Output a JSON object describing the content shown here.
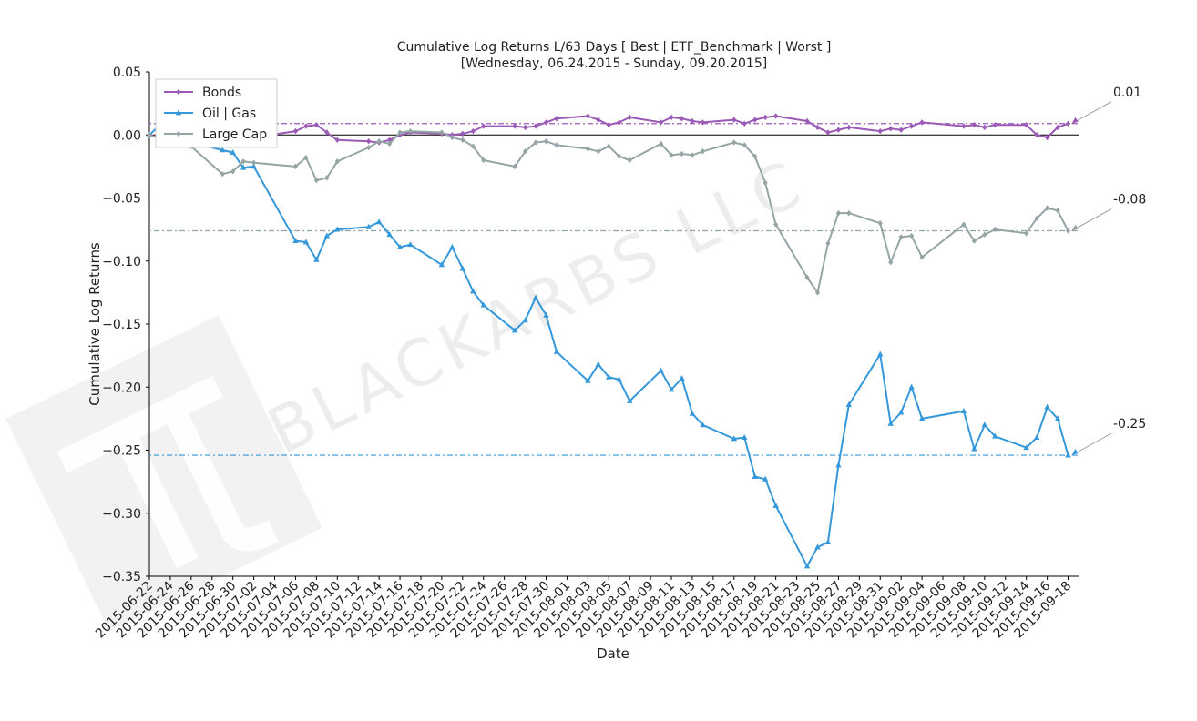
{
  "chart_data": {
    "type": "line",
    "title": "Cumulative Log Returns L/63 Days [ Best | ETF_Benchmark | Worst ]",
    "subtitle": "[Wednesday, 06.24.2015 - Sunday, 09.20.2015]",
    "xlabel": "Date",
    "ylabel": "Cumulative Log Returns",
    "ylim": [
      -0.35,
      0.05
    ],
    "xlim": [
      "2015-06-22",
      "2015-09-19"
    ],
    "y_ticks": [
      "0.05",
      "0.00",
      "−0.05",
      "−0.10",
      "−0.15",
      "−0.20",
      "−0.25",
      "−0.30",
      "−0.35"
    ],
    "y_tick_values": [
      0.05,
      0.0,
      -0.05,
      -0.1,
      -0.15,
      -0.2,
      -0.25,
      -0.3,
      -0.35
    ],
    "x_ticks": [
      "2015-06-22",
      "2015-06-24",
      "2015-06-26",
      "2015-06-28",
      "2015-06-30",
      "2015-07-02",
      "2015-07-04",
      "2015-07-06",
      "2015-07-08",
      "2015-07-10",
      "2015-07-12",
      "2015-07-14",
      "2015-07-16",
      "2015-07-18",
      "2015-07-20",
      "2015-07-22",
      "2015-07-24",
      "2015-07-26",
      "2015-07-28",
      "2015-07-30",
      "2015-08-01",
      "2015-08-03",
      "2015-08-05",
      "2015-08-07",
      "2015-08-09",
      "2015-08-11",
      "2015-08-13",
      "2015-08-15",
      "2015-08-17",
      "2015-08-19",
      "2015-08-21",
      "2015-08-23",
      "2015-08-25",
      "2015-08-27",
      "2015-08-29",
      "2015-08-31",
      "2015-09-02",
      "2015-09-04",
      "2015-09-06",
      "2015-09-08",
      "2015-09-10",
      "2015-09-12",
      "2015-09-14",
      "2015-09-16",
      "2015-09-18"
    ],
    "legend_position": "top-left",
    "grid": false,
    "watermark": "BLACKARBS LLC",
    "series": [
      {
        "name": "Bonds",
        "color": "#9b59b6",
        "marker": "diamond",
        "points": [
          [
            "2015-06-22",
            0.0
          ],
          [
            "2015-06-23",
            -0.002
          ],
          [
            "2015-06-24",
            -0.003
          ],
          [
            "2015-06-25",
            -0.004
          ],
          [
            "2015-06-26",
            -0.004
          ],
          [
            "2015-06-29",
            -0.001
          ],
          [
            "2015-06-30",
            -0.002
          ],
          [
            "2015-07-01",
            -0.003
          ],
          [
            "2015-07-02",
            -0.002
          ],
          [
            "2015-07-06",
            0.003
          ],
          [
            "2015-07-07",
            0.007
          ],
          [
            "2015-07-08",
            0.008
          ],
          [
            "2015-07-09",
            0.002
          ],
          [
            "2015-07-10",
            -0.004
          ],
          [
            "2015-07-13",
            -0.005
          ],
          [
            "2015-07-14",
            -0.006
          ],
          [
            "2015-07-15",
            -0.004
          ],
          [
            "2015-07-16",
            0.0
          ],
          [
            "2015-07-17",
            0.002
          ],
          [
            "2015-07-20",
            0.001
          ],
          [
            "2015-07-21",
            0.0
          ],
          [
            "2015-07-22",
            0.001
          ],
          [
            "2015-07-23",
            0.003
          ],
          [
            "2015-07-24",
            0.007
          ],
          [
            "2015-07-27",
            0.007
          ],
          [
            "2015-07-28",
            0.006
          ],
          [
            "2015-07-29",
            0.007
          ],
          [
            "2015-07-30",
            0.01
          ],
          [
            "2015-07-31",
            0.013
          ],
          [
            "2015-08-03",
            0.015
          ],
          [
            "2015-08-04",
            0.012
          ],
          [
            "2015-08-05",
            0.008
          ],
          [
            "2015-08-06",
            0.01
          ],
          [
            "2015-08-07",
            0.014
          ],
          [
            "2015-08-10",
            0.01
          ],
          [
            "2015-08-11",
            0.014
          ],
          [
            "2015-08-12",
            0.013
          ],
          [
            "2015-08-13",
            0.011
          ],
          [
            "2015-08-14",
            0.01
          ],
          [
            "2015-08-17",
            0.012
          ],
          [
            "2015-08-18",
            0.009
          ],
          [
            "2015-08-19",
            0.012
          ],
          [
            "2015-08-20",
            0.014
          ],
          [
            "2015-08-21",
            0.015
          ],
          [
            "2015-08-24",
            0.011
          ],
          [
            "2015-08-25",
            0.006
          ],
          [
            "2015-08-26",
            0.002
          ],
          [
            "2015-08-27",
            0.004
          ],
          [
            "2015-08-28",
            0.006
          ],
          [
            "2015-08-31",
            0.003
          ],
          [
            "2015-09-01",
            0.005
          ],
          [
            "2015-09-02",
            0.004
          ],
          [
            "2015-09-03",
            0.007
          ],
          [
            "2015-09-04",
            0.01
          ],
          [
            "2015-09-08",
            0.007
          ],
          [
            "2015-09-09",
            0.008
          ],
          [
            "2015-09-10",
            0.006
          ],
          [
            "2015-09-11",
            0.008
          ],
          [
            "2015-09-14",
            0.008
          ],
          [
            "2015-09-15",
            0.0
          ],
          [
            "2015-09-16",
            -0.002
          ],
          [
            "2015-09-17",
            0.006
          ],
          [
            "2015-09-18",
            0.009
          ]
        ]
      },
      {
        "name": "Oil | Gas",
        "color": "#3498db",
        "marker": "triangle",
        "points": [
          [
            "2015-06-22",
            0.0
          ],
          [
            "2015-06-23",
            0.008
          ],
          [
            "2015-06-24",
            -0.003
          ],
          [
            "2015-06-25",
            -0.007
          ],
          [
            "2015-06-26",
            -0.006
          ],
          [
            "2015-06-29",
            -0.012
          ],
          [
            "2015-06-30",
            -0.014
          ],
          [
            "2015-07-01",
            -0.026
          ],
          [
            "2015-07-02",
            -0.025
          ],
          [
            "2015-07-06",
            -0.084
          ],
          [
            "2015-07-07",
            -0.085
          ],
          [
            "2015-07-08",
            -0.099
          ],
          [
            "2015-07-09",
            -0.08
          ],
          [
            "2015-07-10",
            -0.075
          ],
          [
            "2015-07-13",
            -0.073
          ],
          [
            "2015-07-14",
            -0.069
          ],
          [
            "2015-07-15",
            -0.079
          ],
          [
            "2015-07-16",
            -0.089
          ],
          [
            "2015-07-17",
            -0.087
          ],
          [
            "2015-07-20",
            -0.103
          ],
          [
            "2015-07-21",
            -0.089
          ],
          [
            "2015-07-22",
            -0.106
          ],
          [
            "2015-07-23",
            -0.124
          ],
          [
            "2015-07-24",
            -0.135
          ],
          [
            "2015-07-27",
            -0.155
          ],
          [
            "2015-07-28",
            -0.147
          ],
          [
            "2015-07-29",
            -0.129
          ],
          [
            "2015-07-30",
            -0.143
          ],
          [
            "2015-07-31",
            -0.172
          ],
          [
            "2015-08-03",
            -0.195
          ],
          [
            "2015-08-04",
            -0.182
          ],
          [
            "2015-08-05",
            -0.192
          ],
          [
            "2015-08-06",
            -0.194
          ],
          [
            "2015-08-07",
            -0.211
          ],
          [
            "2015-08-10",
            -0.187
          ],
          [
            "2015-08-11",
            -0.202
          ],
          [
            "2015-08-12",
            -0.193
          ],
          [
            "2015-08-13",
            -0.221
          ],
          [
            "2015-08-14",
            -0.23
          ],
          [
            "2015-08-17",
            -0.241
          ],
          [
            "2015-08-18",
            -0.24
          ],
          [
            "2015-08-19",
            -0.271
          ],
          [
            "2015-08-20",
            -0.273
          ],
          [
            "2015-08-21",
            -0.294
          ],
          [
            "2015-08-24",
            -0.342
          ],
          [
            "2015-08-25",
            -0.327
          ],
          [
            "2015-08-26",
            -0.323
          ],
          [
            "2015-08-27",
            -0.262
          ],
          [
            "2015-08-28",
            -0.214
          ],
          [
            "2015-08-31",
            -0.174
          ],
          [
            "2015-09-01",
            -0.229
          ],
          [
            "2015-09-02",
            -0.22
          ],
          [
            "2015-09-03",
            -0.2
          ],
          [
            "2015-09-04",
            -0.225
          ],
          [
            "2015-09-08",
            -0.219
          ],
          [
            "2015-09-09",
            -0.249
          ],
          [
            "2015-09-10",
            -0.23
          ],
          [
            "2015-09-11",
            -0.239
          ],
          [
            "2015-09-14",
            -0.248
          ],
          [
            "2015-09-15",
            -0.24
          ],
          [
            "2015-09-16",
            -0.216
          ],
          [
            "2015-09-17",
            -0.225
          ],
          [
            "2015-09-18",
            -0.254
          ]
        ]
      },
      {
        "name": "Large Cap",
        "color": "#95a5a6",
        "marker": "diamond",
        "points": [
          [
            "2015-06-22",
            0.0
          ],
          [
            "2015-06-23",
            -0.003
          ],
          [
            "2015-06-24",
            -0.006
          ],
          [
            "2015-06-25",
            -0.008
          ],
          [
            "2015-06-26",
            -0.009
          ],
          [
            "2015-06-29",
            -0.031
          ],
          [
            "2015-06-30",
            -0.029
          ],
          [
            "2015-07-01",
            -0.021
          ],
          [
            "2015-07-02",
            -0.022
          ],
          [
            "2015-07-06",
            -0.025
          ],
          [
            "2015-07-07",
            -0.018
          ],
          [
            "2015-07-08",
            -0.036
          ],
          [
            "2015-07-09",
            -0.034
          ],
          [
            "2015-07-10",
            -0.021
          ],
          [
            "2015-07-13",
            -0.01
          ],
          [
            "2015-07-14",
            -0.005
          ],
          [
            "2015-07-15",
            -0.007
          ],
          [
            "2015-07-16",
            0.002
          ],
          [
            "2015-07-17",
            0.003
          ],
          [
            "2015-07-20",
            0.002
          ],
          [
            "2015-07-21",
            -0.002
          ],
          [
            "2015-07-22",
            -0.004
          ],
          [
            "2015-07-23",
            -0.009
          ],
          [
            "2015-07-24",
            -0.02
          ],
          [
            "2015-07-27",
            -0.025
          ],
          [
            "2015-07-28",
            -0.013
          ],
          [
            "2015-07-29",
            -0.006
          ],
          [
            "2015-07-30",
            -0.005
          ],
          [
            "2015-07-31",
            -0.008
          ],
          [
            "2015-08-03",
            -0.011
          ],
          [
            "2015-08-04",
            -0.013
          ],
          [
            "2015-08-05",
            -0.009
          ],
          [
            "2015-08-06",
            -0.017
          ],
          [
            "2015-08-07",
            -0.02
          ],
          [
            "2015-08-10",
            -0.007
          ],
          [
            "2015-08-11",
            -0.016
          ],
          [
            "2015-08-12",
            -0.015
          ],
          [
            "2015-08-13",
            -0.016
          ],
          [
            "2015-08-14",
            -0.013
          ],
          [
            "2015-08-17",
            -0.006
          ],
          [
            "2015-08-18",
            -0.008
          ],
          [
            "2015-08-19",
            -0.017
          ],
          [
            "2015-08-20",
            -0.038
          ],
          [
            "2015-08-21",
            -0.071
          ],
          [
            "2015-08-24",
            -0.113
          ],
          [
            "2015-08-25",
            -0.125
          ],
          [
            "2015-08-26",
            -0.086
          ],
          [
            "2015-08-27",
            -0.062
          ],
          [
            "2015-08-28",
            -0.062
          ],
          [
            "2015-08-31",
            -0.07
          ],
          [
            "2015-09-01",
            -0.101
          ],
          [
            "2015-09-02",
            -0.081
          ],
          [
            "2015-09-03",
            -0.08
          ],
          [
            "2015-09-04",
            -0.097
          ],
          [
            "2015-09-08",
            -0.071
          ],
          [
            "2015-09-09",
            -0.084
          ],
          [
            "2015-09-10",
            -0.079
          ],
          [
            "2015-09-11",
            -0.075
          ],
          [
            "2015-09-14",
            -0.078
          ],
          [
            "2015-09-15",
            -0.066
          ],
          [
            "2015-09-16",
            -0.058
          ],
          [
            "2015-09-17",
            -0.06
          ],
          [
            "2015-09-18",
            -0.076
          ]
        ]
      }
    ],
    "end_labels": [
      {
        "series": "Bonds",
        "label": "0.01",
        "value": 0.009
      },
      {
        "series": "Large Cap",
        "label": "-0.08",
        "value": -0.076
      },
      {
        "series": "Oil | Gas",
        "label": "-0.25",
        "value": -0.254
      }
    ]
  }
}
